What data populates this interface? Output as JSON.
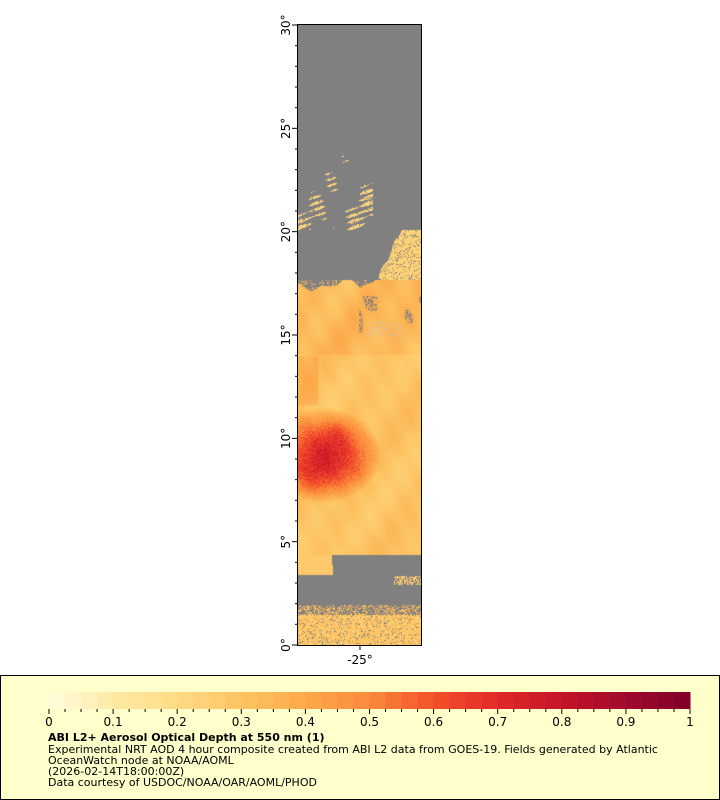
{
  "map": {
    "y_axis": {
      "ticks": [
        "0°",
        "5°",
        "10°",
        "15°",
        "20°",
        "25°",
        "30°"
      ],
      "range": [
        0,
        30
      ]
    },
    "x_axis": {
      "ticks": [
        "-25°"
      ]
    },
    "colors": {
      "no_data": "#808080",
      "land_ice": "#c0c0c0"
    }
  },
  "colorbar": {
    "range": [
      0,
      1
    ],
    "tick_labels": [
      "0",
      "0.1",
      "0.2",
      "0.3",
      "0.4",
      "0.5",
      "0.6",
      "0.7",
      "0.8",
      "0.9",
      "1"
    ],
    "palette": [
      "#fffde0",
      "#feeaa4",
      "#fedb85",
      "#fdc463",
      "#fca84a",
      "#fb8a3c",
      "#f4502a",
      "#e0292a",
      "#c51428",
      "#a00a2d",
      "#800026"
    ]
  },
  "legend": {
    "title": "ABI L2+ Aerosol Optical Depth at 550 nm (1)",
    "line1": "Experimental NRT AOD 4 hour composite created from ABI L2 data from GOES-19. Fields generated by Atlantic",
    "line2": "OceanWatch node at NOAA/AOML",
    "line3": "(2026-02-14T18:00:00Z)",
    "line4": "Data courtesy of USDOC/NOAA/OAR/AOML/PHOD"
  }
}
